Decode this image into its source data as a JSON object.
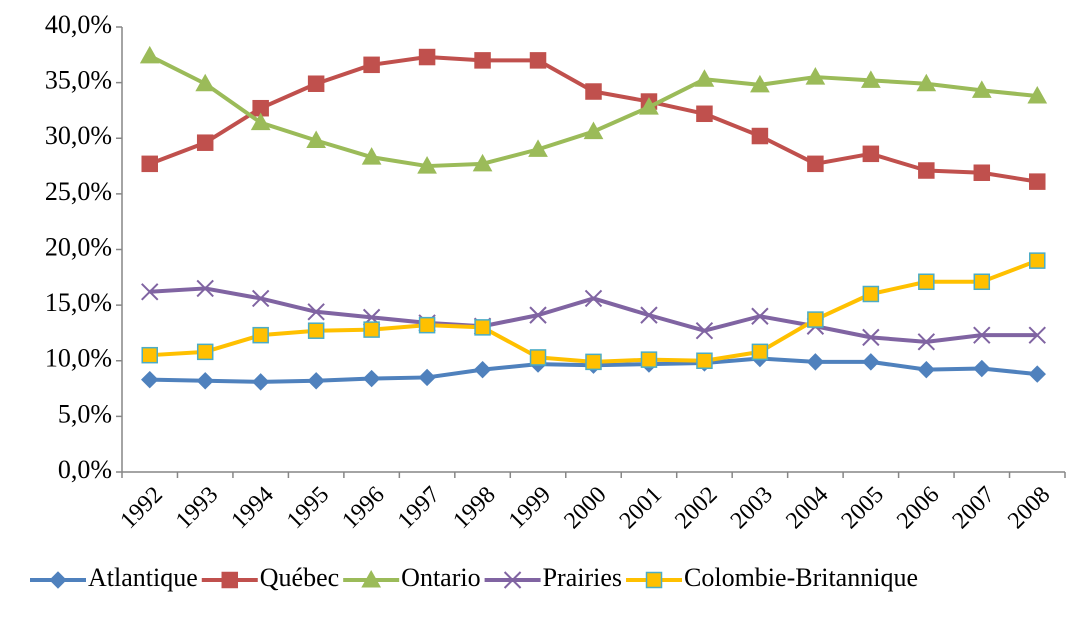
{
  "chart_data": {
    "type": "line",
    "categories": [
      "1992",
      "1993",
      "1994",
      "1995",
      "1996",
      "1997",
      "1998",
      "1999",
      "2000",
      "2001",
      "2002",
      "2003",
      "2004",
      "2005",
      "2006",
      "2007",
      "2008"
    ],
    "series": [
      {
        "name": "Atlantique",
        "color": "#4f81bd",
        "marker": "diamond",
        "values": [
          8.3,
          8.2,
          8.1,
          8.2,
          8.4,
          8.5,
          9.2,
          9.7,
          9.6,
          9.7,
          9.8,
          10.2,
          9.9,
          9.9,
          9.2,
          9.3,
          8.8
        ]
      },
      {
        "name": "Québec",
        "color": "#c0504d",
        "marker": "square",
        "values": [
          27.7,
          29.6,
          32.7,
          34.9,
          36.6,
          37.3,
          37.0,
          37.0,
          34.2,
          33.3,
          32.2,
          30.2,
          27.7,
          28.6,
          27.1,
          26.9,
          26.1
        ]
      },
      {
        "name": "Ontario",
        "color": "#9bbb59",
        "marker": "triangle",
        "values": [
          37.4,
          34.9,
          31.4,
          29.8,
          28.3,
          27.5,
          27.7,
          29.0,
          30.6,
          32.8,
          35.3,
          34.8,
          35.5,
          35.2,
          34.9,
          34.3,
          33.8
        ]
      },
      {
        "name": "Prairies",
        "color": "#8064a2",
        "marker": "x",
        "values": [
          16.2,
          16.5,
          15.6,
          14.4,
          13.9,
          13.4,
          13.1,
          14.1,
          15.6,
          14.1,
          12.7,
          14.0,
          13.1,
          12.1,
          11.7,
          12.3,
          12.3
        ]
      },
      {
        "name": "Colombie-Britannique",
        "color": "#ffc000",
        "marker": "square",
        "marker_stroke": "#4bacc6",
        "values": [
          10.5,
          10.8,
          12.3,
          12.7,
          12.8,
          13.2,
          13.0,
          10.3,
          9.9,
          10.1,
          10.0,
          10.8,
          13.7,
          16.0,
          17.1,
          17.1,
          19.0
        ]
      }
    ],
    "ylim": [
      0,
      40
    ],
    "yticks": [
      {
        "value": 0,
        "label": "0,0%"
      },
      {
        "value": 5,
        "label": "5,0%"
      },
      {
        "value": 10,
        "label": "10,0%"
      },
      {
        "value": 15,
        "label": "15,0%"
      },
      {
        "value": 20,
        "label": "20,0%"
      },
      {
        "value": 25,
        "label": "25,0%"
      },
      {
        "value": 30,
        "label": "30,0%"
      },
      {
        "value": 35,
        "label": "35,0%"
      },
      {
        "value": 40,
        "label": "40,0%"
      }
    ],
    "grid": false,
    "legend": "bottom"
  }
}
